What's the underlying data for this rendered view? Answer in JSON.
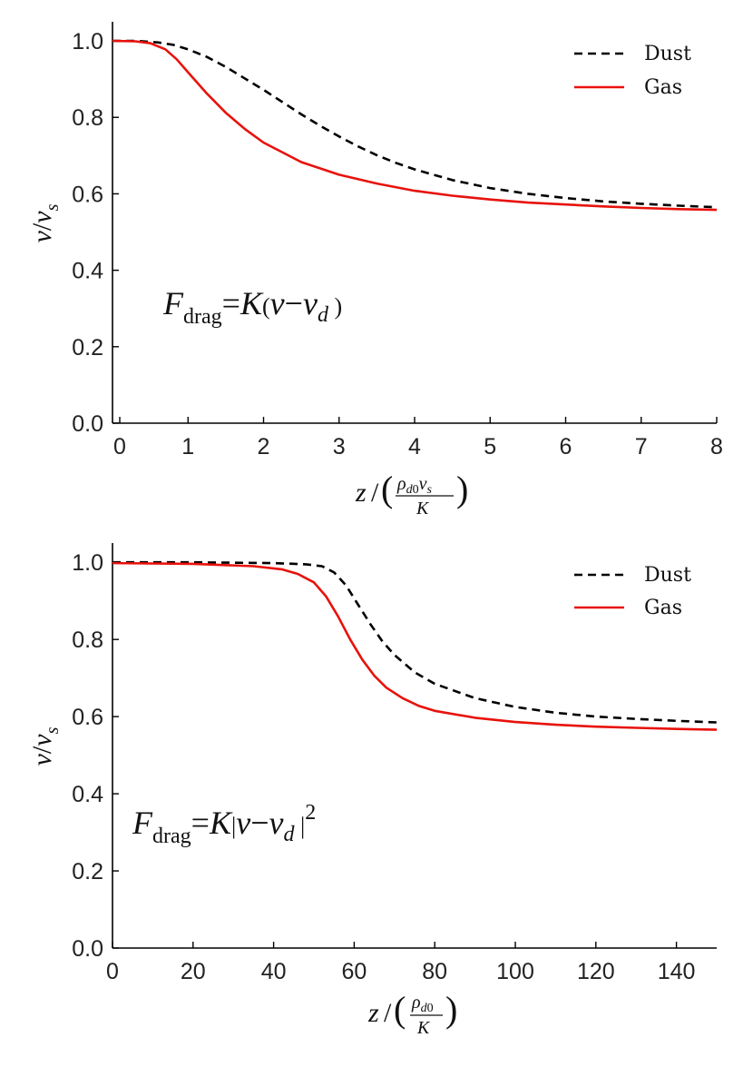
{
  "colors": {
    "dust": "#000000",
    "gas": "#e8120c"
  },
  "chart_data": [
    {
      "type": "line",
      "xlim": [
        0,
        8
      ],
      "ylim": [
        0,
        1.05
      ],
      "x_ticks": [
        "0",
        "1",
        "2",
        "3",
        "4",
        "5",
        "6",
        "7",
        "8"
      ],
      "y_ticks": [
        "0.0",
        "0.2",
        "0.4",
        "0.6",
        "0.8",
        "1.0"
      ],
      "ylabel": "v/vs",
      "xlabel": "z/(ρd0 vs / K)",
      "annotation": "Fdrag = K(v − vd)",
      "legend": {
        "placement": "top-right",
        "entries": [
          "Dust",
          "Gas"
        ]
      },
      "series": [
        {
          "name": "Dust",
          "style": "dashed",
          "x": [
            0,
            0.3,
            0.6,
            0.8,
            1.0,
            1.25,
            1.5,
            1.75,
            2.0,
            2.25,
            2.5,
            2.75,
            3.0,
            3.25,
            3.5,
            3.75,
            4.0,
            4.5,
            5.0,
            5.5,
            6.0,
            6.5,
            7.0,
            7.5,
            8.0
          ],
          "y": [
            1.0,
            1.0,
            0.996,
            0.99,
            0.978,
            0.958,
            0.932,
            0.902,
            0.872,
            0.84,
            0.808,
            0.778,
            0.75,
            0.724,
            0.701,
            0.681,
            0.664,
            0.636,
            0.615,
            0.6,
            0.589,
            0.58,
            0.574,
            0.569,
            0.565
          ]
        },
        {
          "name": "Gas",
          "style": "solid",
          "x": [
            0,
            0.3,
            0.5,
            0.7,
            0.85,
            1.0,
            1.25,
            1.5,
            1.75,
            2.0,
            2.5,
            3.0,
            3.5,
            4.0,
            4.5,
            5.0,
            5.5,
            6.0,
            6.5,
            7.0,
            7.5,
            8.0
          ],
          "y": [
            1.0,
            0.999,
            0.994,
            0.978,
            0.952,
            0.918,
            0.862,
            0.812,
            0.77,
            0.734,
            0.683,
            0.65,
            0.627,
            0.608,
            0.595,
            0.585,
            0.577,
            0.572,
            0.567,
            0.563,
            0.56,
            0.558
          ]
        }
      ]
    },
    {
      "type": "line",
      "xlim": [
        0,
        150
      ],
      "ylim": [
        0,
        1.05
      ],
      "x_ticks": [
        "0",
        "20",
        "40",
        "60",
        "80",
        "100",
        "120",
        "140"
      ],
      "y_ticks": [
        "0.0",
        "0.2",
        "0.4",
        "0.6",
        "0.8",
        "1.0"
      ],
      "ylabel": "v/vs",
      "xlabel": "z/(ρd0 / K)",
      "annotation": "Fdrag = K|v − vd|²",
      "legend": {
        "placement": "top-right",
        "entries": [
          "Dust",
          "Gas"
        ]
      },
      "series": [
        {
          "name": "Dust",
          "style": "dashed",
          "x": [
            0,
            20,
            40,
            48,
            52,
            55,
            58,
            61,
            64,
            67,
            70,
            75,
            80,
            90,
            100,
            110,
            120,
            130,
            140,
            150
          ],
          "y": [
            1.0,
            1.0,
            0.998,
            0.995,
            0.99,
            0.974,
            0.94,
            0.89,
            0.84,
            0.795,
            0.76,
            0.715,
            0.685,
            0.648,
            0.625,
            0.61,
            0.6,
            0.594,
            0.589,
            0.585
          ]
        },
        {
          "name": "Gas",
          "style": "solid",
          "x": [
            0,
            20,
            35,
            42,
            46,
            50,
            53,
            56,
            59,
            62,
            65,
            68,
            72,
            76,
            80,
            90,
            100,
            110,
            120,
            130,
            140,
            150
          ],
          "y": [
            0.998,
            0.996,
            0.99,
            0.982,
            0.97,
            0.948,
            0.912,
            0.86,
            0.8,
            0.748,
            0.706,
            0.675,
            0.648,
            0.628,
            0.615,
            0.597,
            0.586,
            0.579,
            0.574,
            0.571,
            0.568,
            0.566
          ]
        }
      ]
    }
  ]
}
